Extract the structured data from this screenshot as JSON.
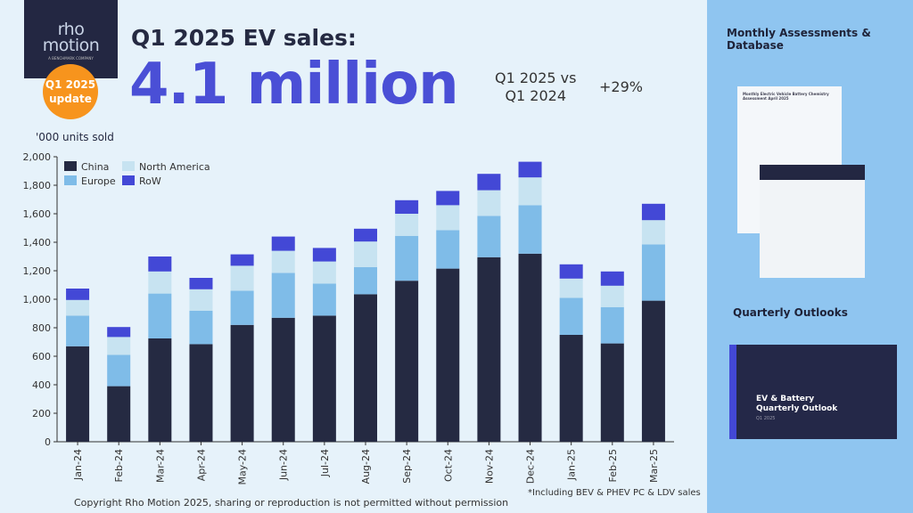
{
  "header": {
    "logo_line1": "rho",
    "logo_line2": "motion",
    "logo_tagline": "A BENCHMARK COMPANY",
    "badge_line1": "Q1 2025",
    "badge_line2": "update",
    "title": "Q1 2025 EV sales:",
    "headline": "4.1 million",
    "comparison_line1": "Q1 2025 vs",
    "comparison_line2": "Q1 2024",
    "growth": "+29%"
  },
  "footer": {
    "copyright": "Copyright Rho Motion 2025, sharing or reproduction is not permitted without permission",
    "note": "*Including BEV & PHEV PC & LDV sales"
  },
  "panel": {
    "section1": "Monthly Assessments & Database",
    "doc1_title": "Monthly Electric Vehicle Battery Chemistry Assessment April 2025",
    "section2": "Quarterly Outlooks",
    "outlook_title_1": "EV & Battery",
    "outlook_title_2": "Quarterly Outlook",
    "outlook_sub": "Q1 2025"
  },
  "chart_data": {
    "type": "bar",
    "stacked": true,
    "ylabel": "'000 units sold",
    "ylim": [
      0,
      2000
    ],
    "yticks": [
      0,
      200,
      400,
      600,
      800,
      1000,
      1200,
      1400,
      1600,
      1800,
      2000
    ],
    "ytick_labels": [
      "0",
      "200",
      "400",
      "600",
      "800",
      "1,000",
      "1,200",
      "1,400",
      "1,600",
      "1,800",
      "2,000"
    ],
    "grid": false,
    "legend": "top-left",
    "categories": [
      "Jan-24",
      "Feb-24",
      "Mar-24",
      "Apr-24",
      "May-24",
      "Jun-24",
      "Jul-24",
      "Aug-24",
      "Sep-24",
      "Oct-24",
      "Nov-24",
      "Dec-24",
      "Jan-25",
      "Feb-25",
      "Mar-25"
    ],
    "series": [
      {
        "name": "China",
        "color": "#252a42",
        "values": [
          670,
          390,
          725,
          685,
          820,
          870,
          885,
          1035,
          1130,
          1215,
          1295,
          1320,
          750,
          690,
          990
        ]
      },
      {
        "name": "Europe",
        "color": "#7fbce8",
        "values": [
          215,
          220,
          315,
          235,
          240,
          315,
          225,
          190,
          315,
          270,
          290,
          340,
          260,
          255,
          395
        ]
      },
      {
        "name": "North America",
        "color": "#c7e3f1",
        "values": [
          110,
          125,
          155,
          150,
          175,
          155,
          155,
          180,
          155,
          175,
          180,
          195,
          135,
          150,
          170
        ]
      },
      {
        "name": "RoW",
        "color": "#4348d6",
        "values": [
          80,
          70,
          105,
          80,
          80,
          100,
          95,
          90,
          95,
          100,
          115,
          110,
          100,
          100,
          115
        ]
      }
    ]
  }
}
